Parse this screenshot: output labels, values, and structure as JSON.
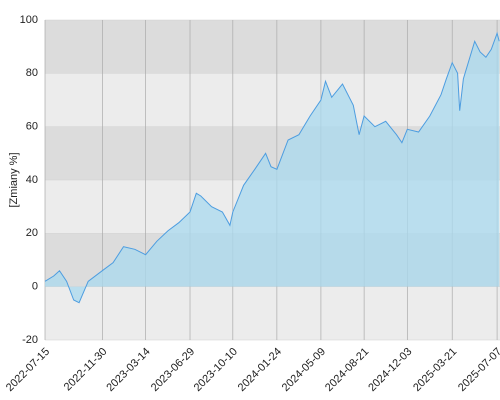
{
  "chart_data": {
    "type": "area",
    "y_label": "[Zmiany %]",
    "x": [
      "2022-07-15",
      "2022-08-05",
      "2022-08-19",
      "2022-09-05",
      "2022-09-22",
      "2022-10-05",
      "2022-10-27",
      "2022-11-30",
      "2022-12-26",
      "2023-01-20",
      "2023-02-16",
      "2023-03-14",
      "2023-04-10",
      "2023-05-07",
      "2023-06-02",
      "2023-06-29",
      "2023-07-14",
      "2023-07-25",
      "2023-08-20",
      "2023-09-15",
      "2023-10-03",
      "2023-10-10",
      "2023-11-05",
      "2023-12-02",
      "2023-12-28",
      "2024-01-10",
      "2024-01-24",
      "2024-02-20",
      "2024-03-17",
      "2024-04-13",
      "2024-05-09",
      "2024-05-20",
      "2024-06-04",
      "2024-06-30",
      "2024-07-26",
      "2024-08-09",
      "2024-08-21",
      "2024-09-16",
      "2024-10-12",
      "2024-11-07",
      "2024-11-20",
      "2024-12-03",
      "2024-12-30",
      "2025-01-26",
      "2025-02-22",
      "2025-03-07",
      "2025-03-21",
      "2025-04-03",
      "2025-04-08",
      "2025-04-17",
      "2025-05-14",
      "2025-05-27",
      "2025-06-10",
      "2025-06-23",
      "2025-07-07",
      "2025-07-12"
    ],
    "values": [
      2,
      4,
      6,
      2,
      -5,
      -6,
      2,
      6,
      9,
      15,
      14,
      12,
      17,
      21,
      24,
      28,
      35,
      34,
      30,
      28,
      23,
      28,
      38,
      44,
      50,
      45,
      44,
      55,
      57,
      64,
      70,
      77,
      71,
      76,
      68,
      57,
      64,
      60,
      62,
      57,
      54,
      59,
      58,
      64,
      72,
      78,
      84,
      80,
      66,
      78,
      92,
      88,
      86,
      89,
      95,
      92
    ],
    "color": "#4d9de0",
    "fill": "#a9d9ef",
    "xlim": [
      "2022-07-15",
      "2025-07-14"
    ],
    "xticks": [
      "2022-07-15",
      "2022-11-30",
      "2023-03-14",
      "2023-06-29",
      "2023-10-10",
      "2024-01-24",
      "2024-05-09",
      "2024-08-21",
      "2024-12-03",
      "2025-03-21",
      "2025-07-07"
    ],
    "ylim": [
      -20,
      100
    ],
    "yticks": [
      -20,
      0,
      20,
      40,
      60,
      80,
      100
    ],
    "band_colors": [
      "#ececec",
      "#dcdcdc"
    ],
    "grid": true
  }
}
